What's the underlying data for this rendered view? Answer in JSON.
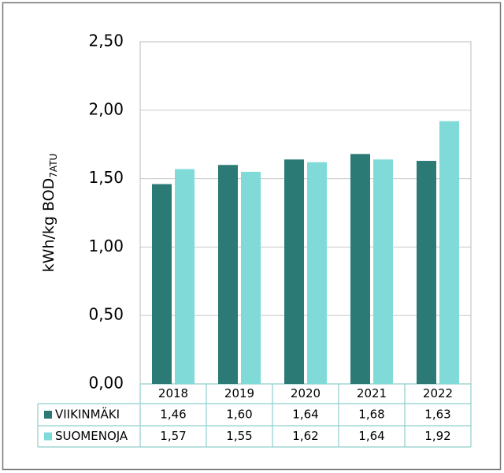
{
  "chart_data": {
    "type": "bar",
    "ylabel": {
      "text": "kWh/kg BOD",
      "subscript": "7ATU"
    },
    "categories": [
      "2018",
      "2019",
      "2020",
      "2021",
      "2022"
    ],
    "series": [
      {
        "name": "VIIKINMÄKI",
        "color": "#2b7a75",
        "values": [
          1.46,
          1.6,
          1.64,
          1.68,
          1.63
        ],
        "value_labels": [
          "1,46",
          "1,60",
          "1,64",
          "1,68",
          "1,63"
        ]
      },
      {
        "name": "SUOMENOJA",
        "color": "#80dbd8",
        "values": [
          1.57,
          1.55,
          1.62,
          1.64,
          1.92
        ],
        "value_labels": [
          "1,57",
          "1,55",
          "1,62",
          "1,64",
          "1,92"
        ]
      }
    ],
    "ylim": [
      0,
      2.5
    ],
    "yticks": [
      {
        "value": 0,
        "label": "0,00"
      },
      {
        "value": 0.5,
        "label": "0,50"
      },
      {
        "value": 1,
        "label": "1,00"
      },
      {
        "value": 1.5,
        "label": "1,50"
      },
      {
        "value": 2,
        "label": "2,00"
      },
      {
        "value": 2.5,
        "label": "2,50"
      }
    ],
    "grid": true
  }
}
